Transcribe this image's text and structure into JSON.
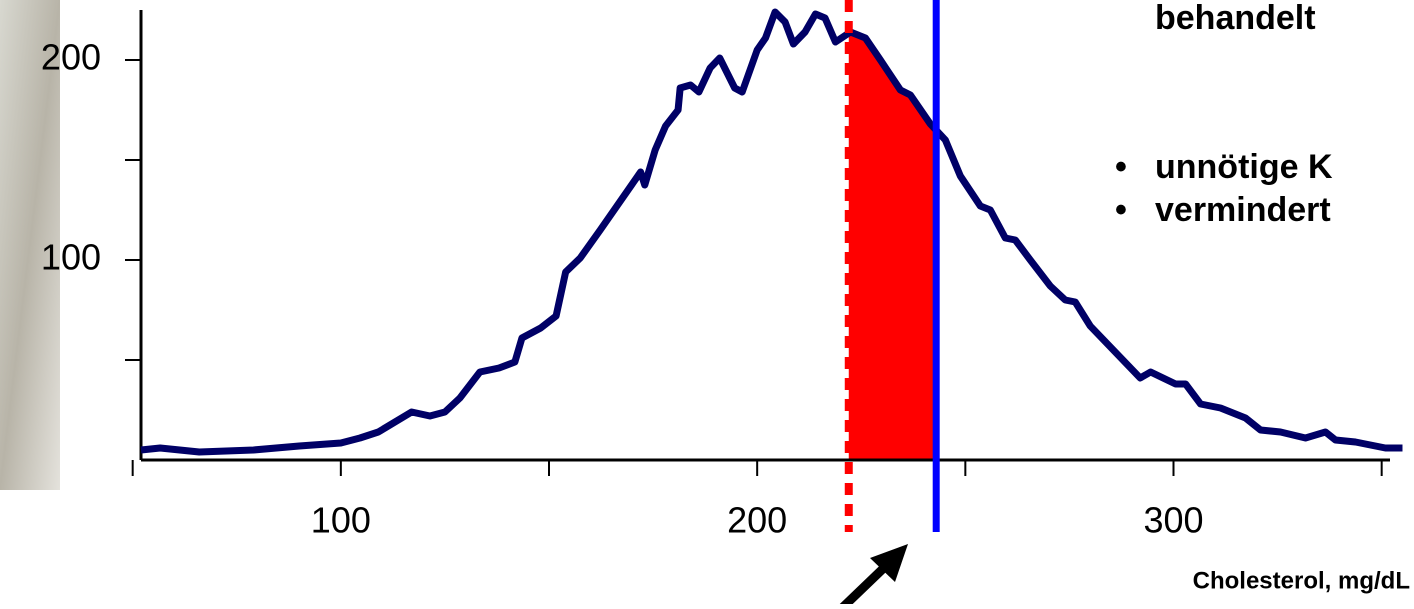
{
  "chart_data": {
    "type": "line",
    "x_label": "Cholesterol, mg/dL",
    "annotations": [
      "behandelt",
      "unnötige K",
      "vermindert"
    ],
    "x": [
      52,
      56.6,
      66,
      79,
      90,
      100,
      104.6,
      109,
      117,
      121.4,
      125,
      128.6,
      133.4,
      138,
      141.8,
      143.5,
      148,
      151.7,
      154,
      157.5,
      162.3,
      172,
      173,
      175.5,
      178,
      181,
      181.5,
      184,
      186,
      188.7,
      191,
      194.6,
      196.4,
      200,
      202,
      204.3,
      206.7,
      208.7,
      211.5,
      214,
      216.3,
      218.8,
      222.4,
      226,
      229.6,
      234.4,
      236.8,
      241.6,
      245.2,
      248.8,
      253.6,
      256,
      259.6,
      262,
      265.6,
      270.4,
      274,
      276.4,
      280,
      292,
      294.5,
      300.5,
      302.9,
      306.5,
      311.3,
      317.3,
      320.9,
      325.7,
      331.7,
      336.5,
      338.9,
      343.7,
      350.9,
      355
    ],
    "series": [
      {
        "color": "#000066",
        "values": [
          5,
          6,
          4,
          5,
          7,
          8.5,
          11,
          14,
          24,
          22,
          24,
          31,
          44,
          46,
          49,
          61,
          66,
          72,
          94,
          101,
          115,
          144,
          137.5,
          155,
          167,
          175,
          186,
          187.5,
          184,
          196,
          201,
          186,
          184,
          205,
          211,
          224,
          219,
          208,
          214,
          223,
          221,
          209,
          214,
          211,
          200,
          185,
          182.5,
          168,
          160,
          142,
          127,
          125,
          111,
          110,
          100,
          87,
          80,
          79,
          67,
          41,
          44,
          38,
          38,
          28,
          26,
          21,
          15,
          14,
          11,
          14,
          10,
          9,
          6,
          6
        ]
      }
    ],
    "xlim": [
      52,
      352
    ],
    "xticks": [
      100,
      200,
      300
    ],
    "xticks_minor": [
      50,
      150,
      250,
      350
    ],
    "ylim": [
      0,
      225
    ],
    "yticks": [
      100,
      200
    ],
    "yticks_minor": [
      50,
      150
    ],
    "threshold_lines": [
      {
        "value": 222,
        "color": "#ff0000",
        "dashed": true
      },
      {
        "value": 243,
        "color": "#0000ff",
        "dashed": false
      }
    ],
    "highlight_range": [
      222,
      243
    ],
    "highlight_color": "#ff0000"
  }
}
